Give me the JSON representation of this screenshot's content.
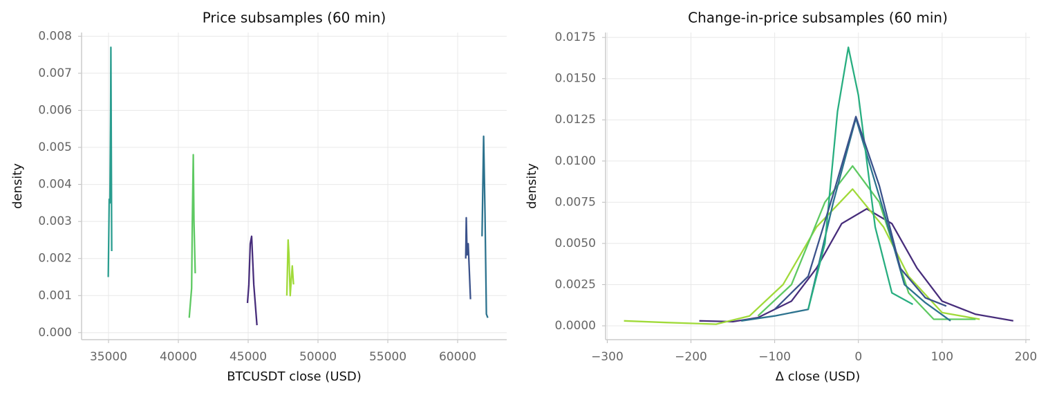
{
  "chart_data": [
    {
      "type": "line",
      "title": "Price subsamples (60 min)",
      "xlabel": "BTCUSDT close (USD)",
      "ylabel": "density",
      "grid": true,
      "xlim": [
        33070,
        63515
      ],
      "ylim": [
        -0.00019,
        0.0081
      ],
      "xticks": [
        35000,
        40000,
        45000,
        50000,
        55000,
        60000
      ],
      "yticks": [
        {
          "value": 0,
          "label": "0.000"
        },
        {
          "value": 0.001,
          "label": "0.001"
        },
        {
          "value": 0.002,
          "label": "0.002"
        },
        {
          "value": 0.003,
          "label": "0.003"
        },
        {
          "value": 0.004,
          "label": "0.004"
        },
        {
          "value": 0.005,
          "label": "0.005"
        },
        {
          "value": 0.006,
          "label": "0.006"
        },
        {
          "value": 0.007,
          "label": "0.007"
        },
        {
          "value": 0.008,
          "label": "0.008"
        }
      ],
      "series": [
        {
          "color": "#2a9d8f",
          "x": [
            34980,
            35050,
            35100,
            35150,
            35170,
            35200,
            35230
          ],
          "values": [
            0.0015,
            0.0036,
            0.0035,
            0.006,
            0.0077,
            0.005,
            0.0022
          ]
        },
        {
          "color": "#5ec962",
          "x": [
            40780,
            40950,
            41000,
            41070,
            41120,
            41210
          ],
          "values": [
            0.0004,
            0.0012,
            0.003,
            0.0048,
            0.003,
            0.0016
          ]
        },
        {
          "color": "#472d7b",
          "x": [
            44950,
            45050,
            45150,
            45250,
            45400,
            45630
          ],
          "values": [
            0.0008,
            0.0013,
            0.0024,
            0.0026,
            0.0013,
            0.0002
          ]
        },
        {
          "color": "#a0da39",
          "x": [
            47770,
            47860,
            47920,
            48010,
            48100,
            48160,
            48250
          ],
          "values": [
            0.001,
            0.0025,
            0.0021,
            0.001,
            0.0015,
            0.0018,
            0.0013
          ]
        },
        {
          "color": "#3b528b",
          "x": [
            60580,
            60620,
            60680,
            60760,
            60920
          ],
          "values": [
            0.002,
            0.0031,
            0.0021,
            0.0024,
            0.0009
          ]
        },
        {
          "color": "#2c728e",
          "x": [
            61750,
            61860,
            61960,
            62060,
            62160
          ],
          "values": [
            0.0026,
            0.0053,
            0.0032,
            0.0005,
            0.0004
          ]
        }
      ]
    },
    {
      "type": "line",
      "title": "Change-in-price subsamples (60 min)",
      "xlabel": "Δ close (USD)",
      "ylabel": "density",
      "grid": true,
      "xlim": [
        -302,
        205
      ],
      "ylim": [
        -0.00084,
        0.0178
      ],
      "xticks": [
        {
          "value": -300,
          "label": "−300"
        },
        {
          "value": -200,
          "label": "−200"
        },
        {
          "value": -100,
          "label": "−100"
        },
        0,
        100,
        200
      ],
      "yticks": [
        {
          "value": 0,
          "label": "0.0000"
        },
        {
          "value": 0.0025,
          "label": "0.0025"
        },
        {
          "value": 0.005,
          "label": "0.0050"
        },
        {
          "value": 0.0075,
          "label": "0.0075"
        },
        {
          "value": 0.01,
          "label": "0.0100"
        },
        {
          "value": 0.0125,
          "label": "0.0125"
        },
        {
          "value": 0.015,
          "label": "0.0150"
        },
        {
          "value": 0.0175,
          "label": "0.0175"
        }
      ],
      "series": [
        {
          "color": "#472d7b",
          "x": [
            -190,
            -150,
            -120,
            -80,
            -50,
            -20,
            10,
            40,
            70,
            100,
            140,
            185
          ],
          "values": [
            0.0003,
            0.00025,
            0.0005,
            0.0015,
            0.0035,
            0.0062,
            0.0071,
            0.0062,
            0.0035,
            0.0015,
            0.0007,
            0.0003
          ]
        },
        {
          "color": "#a0da39",
          "x": [
            -280,
            -230,
            -170,
            -130,
            -90,
            -50,
            -7,
            30,
            60,
            100,
            145
          ],
          "values": [
            0.0003,
            0.0002,
            0.0001,
            0.0006,
            0.0025,
            0.006,
            0.0083,
            0.006,
            0.003,
            0.0008,
            0.0004
          ]
        },
        {
          "color": "#5ec962",
          "x": [
            -120,
            -80,
            -40,
            -7,
            25,
            60,
            90,
            140
          ],
          "values": [
            0.0006,
            0.0025,
            0.0075,
            0.0097,
            0.0075,
            0.002,
            0.0004,
            0.0004
          ]
        },
        {
          "color": "#2c728e",
          "x": [
            -140,
            -100,
            -60,
            -30,
            -3,
            30,
            55,
            80,
            110
          ],
          "values": [
            0.0003,
            0.0006,
            0.001,
            0.0075,
            0.0126,
            0.007,
            0.0025,
            0.0014,
            0.0003
          ]
        },
        {
          "color": "#28ae80",
          "x": [
            -60,
            -40,
            -25,
            -12,
            0,
            20,
            40,
            65
          ],
          "values": [
            0.001,
            0.005,
            0.013,
            0.0169,
            0.014,
            0.006,
            0.002,
            0.0013
          ]
        },
        {
          "color": "#3b528b",
          "x": [
            -100,
            -60,
            -30,
            -3,
            25,
            50,
            80,
            105
          ],
          "values": [
            0.001,
            0.003,
            0.008,
            0.0127,
            0.0085,
            0.0035,
            0.0017,
            0.0012
          ]
        }
      ]
    }
  ]
}
